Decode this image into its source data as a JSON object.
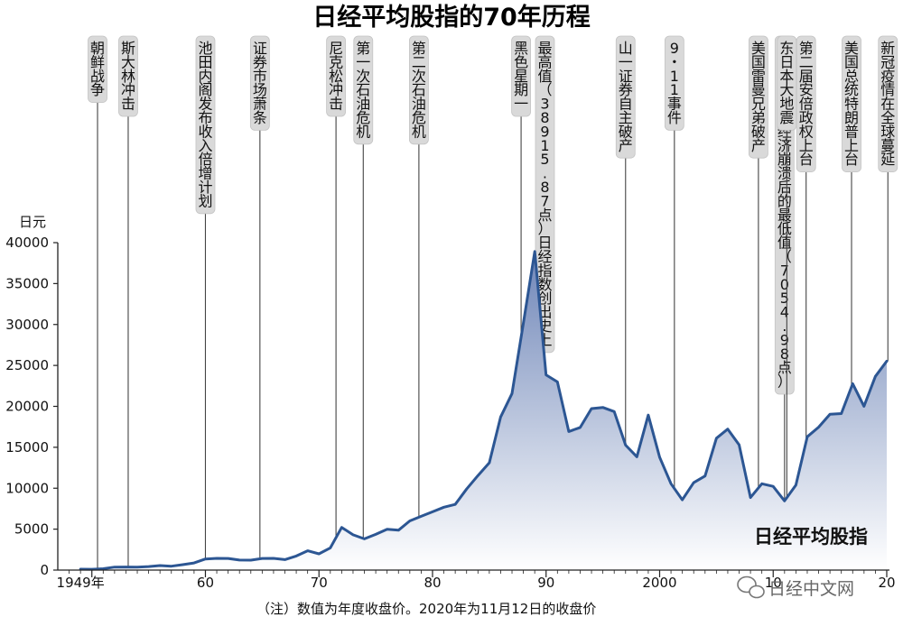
{
  "chart_data": {
    "type": "area",
    "title": "日经平均股指的70年历程",
    "ylabel": "日元",
    "ylim": [
      0,
      40000
    ],
    "yticks": [
      0,
      5000,
      10000,
      15000,
      20000,
      25000,
      30000,
      35000,
      40000
    ],
    "xlim": [
      1947,
      2020
    ],
    "xticks": [
      {
        "x": 1949,
        "label": "1949年"
      },
      {
        "x": 1960,
        "label": "60"
      },
      {
        "x": 1970,
        "label": "70"
      },
      {
        "x": 1980,
        "label": "80"
      },
      {
        "x": 1990,
        "label": "90"
      },
      {
        "x": 2000,
        "label": "2000"
      },
      {
        "x": 2010,
        "label": "10"
      },
      {
        "x": 2020,
        "label": "20"
      }
    ],
    "series": [
      {
        "name": "日经平均股指",
        "points": [
          [
            1949,
            109
          ],
          [
            1950,
            101
          ],
          [
            1951,
            166
          ],
          [
            1952,
            362
          ],
          [
            1953,
            377
          ],
          [
            1954,
            356
          ],
          [
            1955,
            425
          ],
          [
            1956,
            549
          ],
          [
            1957,
            475
          ],
          [
            1958,
            666
          ],
          [
            1959,
            874
          ],
          [
            1960,
            1357
          ],
          [
            1961,
            1432
          ],
          [
            1962,
            1420
          ],
          [
            1963,
            1226
          ],
          [
            1964,
            1216
          ],
          [
            1965,
            1418
          ],
          [
            1966,
            1430
          ],
          [
            1967,
            1283
          ],
          [
            1968,
            1714
          ],
          [
            1969,
            2359
          ],
          [
            1970,
            1987
          ],
          [
            1971,
            2714
          ],
          [
            1972,
            5208
          ],
          [
            1973,
            4307
          ],
          [
            1974,
            3817
          ],
          [
            1975,
            4359
          ],
          [
            1976,
            4991
          ],
          [
            1977,
            4866
          ],
          [
            1978,
            6001
          ],
          [
            1979,
            6570
          ],
          [
            1980,
            7116
          ],
          [
            1981,
            7682
          ],
          [
            1982,
            8017
          ],
          [
            1983,
            9894
          ],
          [
            1984,
            11543
          ],
          [
            1985,
            13113
          ],
          [
            1986,
            18701
          ],
          [
            1987,
            21564
          ],
          [
            1988,
            30159
          ],
          [
            1989,
            38916
          ],
          [
            1990,
            23849
          ],
          [
            1991,
            22984
          ],
          [
            1992,
            16925
          ],
          [
            1993,
            17417
          ],
          [
            1994,
            19723
          ],
          [
            1995,
            19868
          ],
          [
            1996,
            19361
          ],
          [
            1997,
            15259
          ],
          [
            1998,
            13842
          ],
          [
            1999,
            18934
          ],
          [
            2000,
            13786
          ],
          [
            2001,
            10543
          ],
          [
            2002,
            8579
          ],
          [
            2003,
            10677
          ],
          [
            2004,
            11489
          ],
          [
            2005,
            16111
          ],
          [
            2006,
            17226
          ],
          [
            2007,
            15308
          ],
          [
            2008,
            8860
          ],
          [
            2009,
            10546
          ],
          [
            2010,
            10229
          ],
          [
            2011,
            8455
          ],
          [
            2012,
            10395
          ],
          [
            2013,
            16291
          ],
          [
            2014,
            17451
          ],
          [
            2015,
            19034
          ],
          [
            2016,
            19114
          ],
          [
            2017,
            22765
          ],
          [
            2018,
            20015
          ],
          [
            2019,
            23657
          ],
          [
            2020,
            25520
          ]
        ]
      }
    ],
    "events": [
      {
        "x": 1950.5,
        "label": "朝鲜战争"
      },
      {
        "x": 1953.2,
        "label": "斯大林冲击"
      },
      {
        "x": 1960.0,
        "label": "池田内阁发布收入倍增计划"
      },
      {
        "x": 1964.8,
        "label": "证券市场萧条"
      },
      {
        "x": 1971.5,
        "label": "尼克松冲击"
      },
      {
        "x": 1973.9,
        "label": "第一次石油危机"
      },
      {
        "x": 1978.8,
        "label": "第二次石油危机"
      },
      {
        "x": 1987.8,
        "label": "黑色星期一"
      },
      {
        "x": 1989.9,
        "label": "最高值（38915.87点）日经指数创出史上"
      },
      {
        "x": 1997.0,
        "label": "山一证券自主破产"
      },
      {
        "x": 2001.3,
        "label": "9・11事件"
      },
      {
        "x": 2008.7,
        "label": "美国雷曼兄弟破产"
      },
      {
        "x": 2011.0,
        "label": "三月创出泡沫经济崩溃后的最低值（7054.98点）"
      },
      {
        "x": 2011.2,
        "label": "东日本大地震"
      },
      {
        "x": 2012.9,
        "label": "第二届安倍政权上台"
      },
      {
        "x": 2016.9,
        "label": "美国总统特朗普上台"
      },
      {
        "x": 2020.1,
        "label": "新冠疫情在全球蔓延"
      }
    ],
    "series_label": "日经平均股指",
    "note": "（注）数值为年度收盘价。2020年为11月12日的收盘价",
    "watermark": "日经中文网",
    "grid": false,
    "legend": "none"
  }
}
